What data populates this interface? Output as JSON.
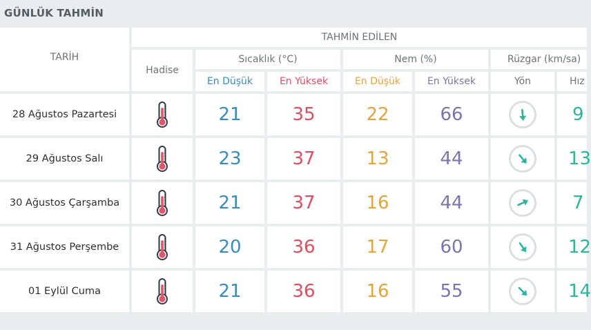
{
  "title": "GÜNLÜK TAHMİN",
  "headers": {
    "date": "TARİH",
    "forecast": "TAHMİN EDİLEN",
    "event": "Hadise",
    "temperature": "Sıcaklık (°C)",
    "humidity": "Nem (%)",
    "wind": "Rüzgar (km/sa)",
    "temp_min": "En Düşük",
    "temp_max": "En Yüksek",
    "hum_min": "En Düşük",
    "hum_max": "En Yüksek",
    "wind_dir": "Yön",
    "wind_speed": "Hız"
  },
  "colors": {
    "temp_min": "#3a8bb7",
    "temp_max": "#d84f62",
    "hum_min": "#e3a43b",
    "hum_max": "#7d73a8",
    "wind": "#2fb39a"
  },
  "rows": [
    {
      "date": "28 Ağustos Pazartesi",
      "icon": "thermometer-icon",
      "temp_min": "21",
      "temp_max": "35",
      "hum_min": "22",
      "hum_max": "66",
      "wind_dir_deg": 175,
      "wind_speed": "9"
    },
    {
      "date": "29 Ağustos Salı",
      "icon": "thermometer-icon",
      "temp_min": "23",
      "temp_max": "37",
      "hum_min": "13",
      "hum_max": "44",
      "wind_dir_deg": 140,
      "wind_speed": "13"
    },
    {
      "date": "30 Ağustos Çarşamba",
      "icon": "thermometer-icon",
      "temp_min": "21",
      "temp_max": "37",
      "hum_min": "16",
      "hum_max": "44",
      "wind_dir_deg": 65,
      "wind_speed": "7"
    },
    {
      "date": "31 Ağustos Perşembe",
      "icon": "thermometer-icon",
      "temp_min": "20",
      "temp_max": "36",
      "hum_min": "17",
      "hum_max": "60",
      "wind_dir_deg": 145,
      "wind_speed": "12"
    },
    {
      "date": "01 Eylül Cuma",
      "icon": "thermometer-icon",
      "temp_min": "21",
      "temp_max": "36",
      "hum_min": "16",
      "hum_max": "55",
      "wind_dir_deg": 135,
      "wind_speed": "14"
    }
  ]
}
